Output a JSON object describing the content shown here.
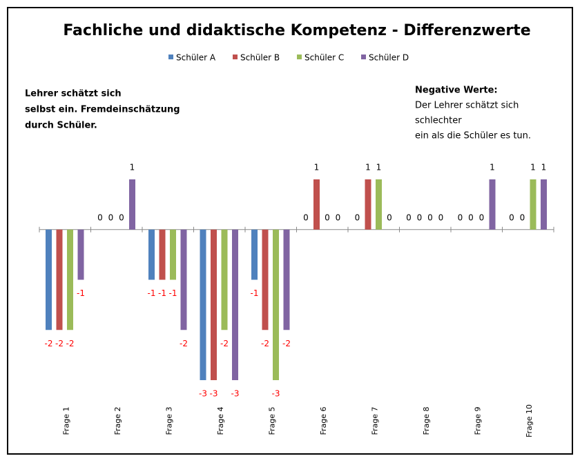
{
  "chart_data": {
    "type": "bar",
    "title": "Fachliche und didaktische Kompetenz - Differenzwerte",
    "categories": [
      "Frage 1",
      "Frage 2",
      "Frage 3",
      "Frage 4",
      "Frage 5",
      "Frage 6",
      "Frage 7",
      "Frage 8",
      "Frage 9",
      "Frage 10"
    ],
    "series": [
      {
        "name": "Schüler A",
        "color": "#4f81bd",
        "values": [
          -2,
          0,
          -1,
          -3,
          -1,
          0,
          0,
          0,
          0,
          0
        ]
      },
      {
        "name": "Schüler B",
        "color": "#c0504d",
        "values": [
          -2,
          0,
          -1,
          -3,
          -2,
          1,
          1,
          0,
          0,
          0
        ]
      },
      {
        "name": "Schüler C",
        "color": "#9bbb59",
        "values": [
          -2,
          0,
          -1,
          -2,
          -3,
          0,
          1,
          0,
          0,
          1
        ]
      },
      {
        "name": "Schüler D",
        "color": "#8064a2",
        "values": [
          -1,
          1,
          -2,
          -3,
          -2,
          0,
          0,
          0,
          1,
          1
        ]
      }
    ],
    "ylim": [
      -3,
      1
    ],
    "legend": "top",
    "negative_label_color": "#ff0000",
    "annotations": [
      {
        "lines": [
          "Lehrer schätzt sich",
          "selbst ein. Fremdeinschätzung",
          "durch Schüler."
        ]
      },
      {
        "heading": "Negative Werte:",
        "lines": [
          "Der Lehrer schätzt sich",
          "schlechter",
          "ein als die Schüler es tun."
        ]
      }
    ]
  }
}
